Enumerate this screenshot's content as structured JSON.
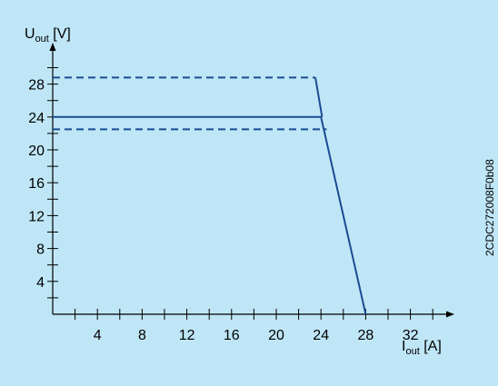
{
  "chart_data": {
    "type": "line",
    "ylabel": {
      "main": "U",
      "sub": "out",
      "unit": " [V]"
    },
    "xlabel": {
      "main": "I",
      "sub": "out",
      "unit": " [A]"
    },
    "xlim": [
      0,
      36
    ],
    "ylim": [
      0,
      32
    ],
    "x_major_ticks": [
      4,
      8,
      12,
      16,
      20,
      24,
      28,
      32
    ],
    "y_major_ticks": [
      4,
      8,
      12,
      16,
      20,
      24,
      28
    ],
    "x_minor_step": 2,
    "y_minor_step": 2,
    "grid": false,
    "series": [
      {
        "style": "solid",
        "x": [
          0,
          24,
          28
        ],
        "y": [
          24,
          24,
          0
        ]
      },
      {
        "style": "dashed",
        "x": [
          0,
          23.5
        ],
        "y": [
          28.8,
          28.8
        ]
      },
      {
        "style": "dashed",
        "x": [
          0,
          24.5
        ],
        "y": [
          22.5,
          22.5
        ]
      }
    ],
    "line_color": "#1a4c94",
    "background_color": "#bfe6f6"
  },
  "side_code": "2CDC272008F0b08"
}
